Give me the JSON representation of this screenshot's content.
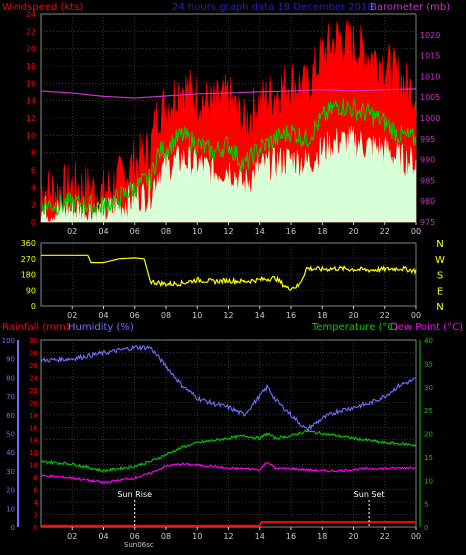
{
  "chart_data": [
    {
      "type": "line",
      "panel": "wind",
      "title": "24 hours graph data 18 December 2018",
      "ylabel_left": "Windspeed (kts)",
      "ylabel_right": "Barometer (mb)",
      "x_ticks": [
        "02",
        "04",
        "06",
        "08",
        "10",
        "12",
        "14",
        "16",
        "18",
        "20",
        "22",
        "00"
      ],
      "ylim_left": [
        0,
        24
      ],
      "y_ticks_left": [
        0,
        2,
        4,
        6,
        8,
        10,
        12,
        14,
        16,
        18,
        20,
        22,
        24
      ],
      "ylim_right": [
        975,
        1025
      ],
      "y_ticks_right": [
        975,
        980,
        985,
        990,
        995,
        1000,
        1005,
        1010,
        1015,
        1020
      ],
      "grid": true,
      "colors": {
        "gust": "#ff0000",
        "average": "#00d000",
        "speed": "#d8ffd8",
        "barometer": "#cc33cc",
        "grid": "#555555",
        "title": "#2222cc",
        "label_left": "#ff0000",
        "label_right": "#cc33cc"
      },
      "series": [
        {
          "name": "Gust",
          "x": [
            0,
            1,
            2,
            3,
            4,
            5,
            6,
            7,
            7.5,
            8,
            9,
            10,
            11,
            12,
            13,
            14,
            15,
            16,
            17,
            18,
            19,
            20,
            21,
            22,
            23,
            24
          ],
          "values": [
            3.5,
            3.2,
            3.8,
            3.5,
            3.0,
            4.5,
            6.5,
            8.0,
            12.5,
            13.0,
            15.5,
            14.0,
            13.0,
            14.0,
            11.0,
            13.5,
            14.5,
            16.0,
            15.0,
            19.0,
            21.0,
            20.0,
            19.0,
            18.0,
            16.0,
            14.5
          ]
        },
        {
          "name": "Average",
          "x": [
            0,
            1,
            2,
            3,
            4,
            5,
            6,
            7,
            7.5,
            8,
            9,
            10,
            11,
            12,
            13,
            14,
            15,
            16,
            17,
            18,
            19,
            20,
            21,
            22,
            23,
            24
          ],
          "values": [
            2.0,
            2.0,
            2.2,
            2.0,
            1.8,
            2.8,
            4.0,
            5.0,
            8.0,
            8.5,
            10.0,
            9.0,
            8.0,
            9.0,
            6.5,
            8.5,
            9.5,
            10.5,
            9.5,
            12.0,
            13.5,
            13.0,
            12.5,
            11.5,
            10.0,
            9.5
          ]
        },
        {
          "name": "Speed",
          "x": [
            0,
            1,
            2,
            3,
            4,
            5,
            6,
            7,
            7.5,
            8,
            9,
            10,
            11,
            12,
            13,
            14,
            15,
            16,
            17,
            18,
            19,
            20,
            21,
            22,
            23,
            24
          ],
          "values": [
            1.0,
            1.0,
            1.2,
            1.0,
            0.8,
            1.5,
            2.5,
            3.0,
            5.5,
            6.0,
            7.0,
            6.5,
            5.5,
            6.0,
            4.0,
            6.0,
            6.5,
            7.0,
            6.5,
            8.0,
            9.0,
            9.0,
            8.5,
            8.0,
            7.0,
            6.5
          ]
        },
        {
          "name": "Barometer",
          "axis": "right",
          "x": [
            0,
            2,
            4,
            6,
            8,
            10,
            12,
            14,
            16,
            18,
            20,
            22,
            24
          ],
          "values": [
            1006.5,
            1006.0,
            1005.2,
            1004.8,
            1005.3,
            1005.8,
            1006.0,
            1006.3,
            1006.5,
            1006.8,
            1006.5,
            1006.8,
            1007.0
          ]
        }
      ]
    },
    {
      "type": "line",
      "panel": "direction",
      "x_ticks": [
        "02",
        "04",
        "06",
        "08",
        "10",
        "12",
        "14",
        "16",
        "18",
        "20",
        "22",
        "00"
      ],
      "ylim": [
        0,
        360
      ],
      "y_ticks": [
        0,
        90,
        180,
        270,
        360
      ],
      "right_labels": [
        "N",
        "W",
        "S",
        "E",
        "N"
      ],
      "colors": {
        "direction": "#ffff00",
        "axis_labels": "#ffff00"
      },
      "series": [
        {
          "name": "Wind Direction",
          "x": [
            0,
            1,
            2,
            3,
            3.2,
            4,
            5,
            6,
            6.6,
            7,
            8,
            9,
            10,
            11,
            12,
            13,
            14,
            15,
            15.8,
            16.5,
            17,
            18,
            19,
            20,
            21,
            22,
            23,
            24
          ],
          "values": [
            290,
            290,
            290,
            290,
            248,
            248,
            270,
            275,
            270,
            140,
            125,
            130,
            150,
            140,
            145,
            140,
            150,
            160,
            100,
            115,
            215,
            210,
            215,
            210,
            205,
            210,
            215,
            200
          ]
        }
      ]
    },
    {
      "type": "line",
      "panel": "temperature",
      "labels": {
        "rainfall": "Rainfall (mm)",
        "humidity": "Humidity (%)",
        "temperature": "Temperature (°C)",
        "dew_point": "Dew Point (°C)"
      },
      "x_ticks": [
        "02",
        "04",
        "06",
        "08",
        "10",
        "12",
        "14",
        "16",
        "18",
        "20",
        "22",
        "00"
      ],
      "humidity_ticks": [
        0,
        10,
        20,
        30,
        40,
        50,
        60,
        70,
        80,
        90,
        100
      ],
      "rainfall_ticks": [
        0,
        2,
        4,
        6,
        8,
        10,
        12,
        14,
        16,
        18,
        20,
        22,
        24,
        26,
        28,
        30
      ],
      "temperature_ticks": [
        0,
        5,
        10,
        15,
        20,
        25,
        30,
        35,
        40
      ],
      "annotations": [
        {
          "text": "Sun Rise",
          "x": 6.0
        },
        {
          "text": "Sun Set",
          "x": 21.0
        }
      ],
      "sunrise_tick_label": "Sun06sc",
      "colors": {
        "humidity": "#7070ff",
        "temperature": "#00cc00",
        "dew_point": "#ff00ff",
        "rainfall": "#ff0000",
        "grid": "#555555"
      },
      "series": [
        {
          "name": "Humidity",
          "axis": "humidity",
          "x": [
            0,
            2,
            4,
            6,
            7,
            8,
            9,
            10,
            11,
            12,
            13,
            14,
            14.5,
            15,
            16,
            17,
            18,
            19,
            20,
            21,
            22,
            23,
            24
          ],
          "values": [
            89,
            90,
            93,
            96,
            96,
            86,
            76,
            69,
            66,
            64,
            60,
            70,
            75,
            68,
            60,
            52,
            58,
            62,
            64,
            66,
            70,
            76,
            79
          ]
        },
        {
          "name": "Temperature",
          "axis": "temperature",
          "x": [
            0,
            2,
            4,
            6,
            7,
            8,
            9,
            10,
            11,
            12,
            13,
            14,
            14.5,
            15,
            16,
            17,
            18,
            19,
            20,
            21,
            22,
            23,
            24
          ],
          "values": [
            14,
            13.5,
            12,
            13,
            14,
            15.5,
            17,
            18,
            18.5,
            19,
            19.5,
            19,
            20,
            19,
            19.5,
            20.5,
            20,
            19.5,
            19,
            18.5,
            18,
            17.8,
            17.5
          ]
        },
        {
          "name": "Dew Point",
          "axis": "temperature",
          "x": [
            0,
            2,
            4,
            6,
            7,
            8,
            9,
            10,
            11,
            12,
            13,
            14,
            14.5,
            15,
            16,
            17,
            18,
            19,
            20,
            21,
            22,
            23,
            24
          ],
          "values": [
            11,
            10.5,
            9.5,
            10.5,
            11.5,
            13,
            13.5,
            13.2,
            13,
            12.5,
            12.5,
            12.3,
            14,
            12.5,
            12.5,
            12.2,
            12,
            12,
            12.3,
            12.5,
            12.5,
            12.6,
            12.8
          ]
        },
        {
          "name": "Rainfall",
          "axis": "rainfall",
          "x": [
            0,
            2,
            4,
            6,
            8,
            10,
            12,
            14,
            14.1,
            16,
            18,
            20,
            22,
            24
          ],
          "values": [
            0.2,
            0.2,
            0.2,
            0.2,
            0.2,
            0.2,
            0.2,
            0.2,
            0.8,
            0.8,
            0.8,
            0.8,
            0.8,
            0.8
          ]
        }
      ]
    }
  ]
}
